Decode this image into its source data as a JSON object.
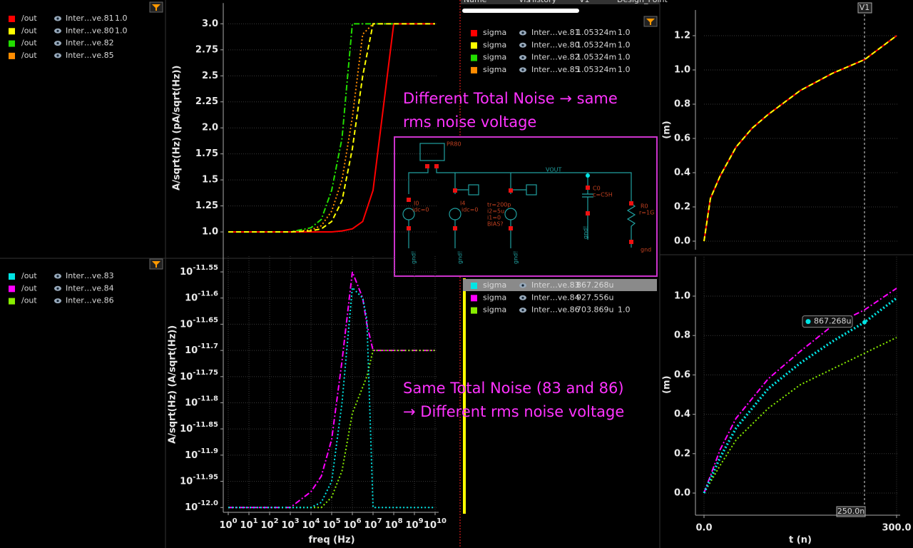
{
  "left_legend": {
    "top": [
      {
        "signal": "/out",
        "name": "Inter…ve.81",
        "extra": "1.0",
        "color": "#ff0000"
      },
      {
        "signal": "/out",
        "name": "Inter…ve.80",
        "extra": "1.0",
        "color": "#ffff00"
      },
      {
        "signal": "/out",
        "name": "Inter…ve.82",
        "color": "#22dd00"
      },
      {
        "signal": "/out",
        "name": "Inter…ve.85",
        "color": "#ff8c00"
      }
    ],
    "bottom": [
      {
        "signal": "/out",
        "name": "Inter…ve.83",
        "color": "#00e5e5"
      },
      {
        "signal": "/out",
        "name": "Inter…ve.84",
        "color": "#ff00ff"
      },
      {
        "signal": "/out",
        "name": "Inter…ve.86",
        "color": "#88ee00"
      }
    ]
  },
  "middle": {
    "header": [
      "Name",
      "Vis",
      "History",
      "V1",
      "Design_Point"
    ],
    "top_rows": [
      {
        "label": "sigma",
        "name": "Inter…ve.81",
        "value": "1.05324m",
        "extra": "1.0",
        "color": "#ff0000"
      },
      {
        "label": "sigma",
        "name": "Inter…ve.80",
        "value": "1.05324m",
        "extra": "1.0",
        "color": "#ffff00"
      },
      {
        "label": "sigma",
        "name": "Inter…ve.82",
        "value": "1.05324m",
        "extra": "1.0",
        "color": "#22dd00"
      },
      {
        "label": "sigma",
        "name": "Inter…ve.85",
        "value": "1.05324m",
        "extra": "1.0",
        "color": "#ff8c00"
      }
    ],
    "bottom_rows": [
      {
        "label": "sigma",
        "name": "Inter…ve.83",
        "value": "867.268u",
        "color": "#00e5e5"
      },
      {
        "label": "sigma",
        "name": "Inter…ve.84",
        "value": "927.556u",
        "color": "#ff00ff"
      },
      {
        "label": "sigma",
        "name": "Inter…ve.86",
        "value": "703.869u",
        "extra": "1.0",
        "color": "#88ee00"
      }
    ],
    "note_top": [
      "Different Total Noise → same",
      "rms noise voltage"
    ],
    "note_bottom": [
      "Same Total Noise (83 and 86)",
      "→ Different rms noise voltage"
    ]
  },
  "schematic": {
    "labels": [
      "PR80",
      "VOUT",
      "I0",
      "idc=0",
      "I4",
      "idc=0",
      "tr=200p",
      "i2=5u",
      "i1=0",
      "BIAS?",
      "C0",
      "c=C5H",
      "R0",
      "r=1G",
      "gnd!",
      "gnd!",
      "gnd!",
      "gnd!",
      "gnd"
    ]
  },
  "chart_data": [
    {
      "type": "line",
      "y_label": "A/sqrt(Hz) (pA/sqrt(Hz))",
      "x_log": true,
      "x": [
        1,
        10,
        100,
        1000,
        10000,
        31623,
        100000,
        316228,
        1000000,
        3162278,
        10000000,
        31622777,
        100000000,
        1000000000,
        10000000000
      ],
      "xlim": [
        1,
        10000000000
      ],
      "ylim": [
        0.8,
        3.2
      ],
      "yticks": [
        {
          "value": 1,
          "label": "1.0"
        },
        1.25,
        1.5,
        1.75,
        {
          "value": 2,
          "label": "2.0"
        },
        2.25,
        2.5,
        2.75,
        {
          "value": 3,
          "label": "3.0"
        }
      ],
      "grid": true,
      "series": [
        {
          "color": "#ff8c00",
          "style": "dot",
          "values": [
            1,
            1,
            1,
            1,
            1.02,
            1.06,
            1.2,
            1.5,
            2.1,
            2.9,
            3,
            3,
            3,
            3,
            3
          ]
        },
        {
          "color": "#22dd00",
          "style": "dashdot",
          "values": [
            1,
            1,
            1,
            1,
            1.04,
            1.12,
            1.4,
            1.9,
            3,
            3,
            3,
            3,
            3,
            3,
            3
          ]
        },
        {
          "color": "#ff0000",
          "style": "solid",
          "values": [
            1,
            1,
            1,
            1,
            1,
            1,
            1,
            1.01,
            1.03,
            1.1,
            1.4,
            2.2,
            3,
            3,
            3
          ]
        },
        {
          "color": "#ffff00",
          "style": "dash",
          "values": [
            1,
            1,
            1,
            1,
            1.01,
            1.03,
            1.1,
            1.3,
            1.8,
            2.5,
            3,
            3,
            3,
            3,
            3
          ]
        }
      ]
    },
    {
      "type": "line",
      "y_label": "A/sqrt(Hz) (A/sqrt(Hz))",
      "x_label": "freq (Hz)",
      "x_log": true,
      "y_log": true,
      "x": [
        1,
        10,
        100,
        1000,
        10000,
        31623,
        100000,
        316228,
        1000000,
        3162278,
        5000000,
        10000000,
        100000000,
        1000000000,
        10000000000
      ],
      "xlim": [
        1,
        10000000000
      ],
      "xticks": [
        {
          "value": 1,
          "label": "100"
        },
        {
          "value": 10,
          "label": "101"
        },
        {
          "value": 100,
          "label": "102"
        },
        {
          "value": 1000,
          "label": "103"
        },
        {
          "value": 10000,
          "label": "104"
        },
        {
          "value": 100000,
          "label": "105"
        },
        {
          "value": 1000000,
          "label": "106"
        },
        {
          "value": 10000000,
          "label": "107"
        },
        {
          "value": 100000000,
          "label": "108"
        },
        {
          "value": 1000000000,
          "label": "109"
        },
        {
          "value": 10000000000,
          "label": "1010"
        }
      ],
      "ylim": [
        9.772e-13,
        3.02e-12
      ],
      "yticks": [
        {
          "value": 2.818e-12,
          "label": "10-11.55"
        },
        {
          "value": 2.512e-12,
          "label": "10-11.6"
        },
        {
          "value": 2.239e-12,
          "label": "10-11.65"
        },
        {
          "value": 1.995e-12,
          "label": "10-11.7"
        },
        {
          "value": 1.778e-12,
          "label": "10-11.75"
        },
        {
          "value": 1.585e-12,
          "label": "10-11.8"
        },
        {
          "value": 1.413e-12,
          "label": "10-11.85"
        },
        {
          "value": 1.259e-12,
          "label": "10-11.9"
        },
        {
          "value": 1.122e-12,
          "label": "10-11.95"
        },
        {
          "value": 1e-12,
          "label": "10-12.0"
        }
      ],
      "grid": true,
      "series": [
        {
          "color": "#ff00ff",
          "style": "dashdot",
          "values": [
            1e-12,
            1e-12,
            1e-12,
            1e-12,
            1.072e-12,
            1.148e-12,
            1.349e-12,
            1.905e-12,
            2.818e-12,
            2.512e-12,
            2.239e-12,
            1.995e-12,
            1.995e-12,
            1.995e-12,
            1.995e-12
          ]
        },
        {
          "color": "#88ee00",
          "style": "dot",
          "values": [
            1e-12,
            1e-12,
            1e-12,
            1e-12,
            1e-12,
            1e-12,
            1.047e-12,
            1.175e-12,
            1.514e-12,
            1.698e-12,
            1.778e-12,
            1.995e-12,
            1.995e-12,
            1.995e-12,
            1.995e-12
          ]
        },
        {
          "color": "#00e5e5",
          "style": "dot",
          "values": [
            1e-12,
            1e-12,
            1e-12,
            1e-12,
            1e-12,
            1.023e-12,
            1.122e-12,
            1.585e-12,
            2.63e-12,
            2.512e-12,
            2.291e-12,
            1e-12,
            1e-12,
            1e-12,
            1e-12
          ]
        }
      ]
    },
    {
      "type": "line",
      "y_label": "(m)",
      "x": [
        0,
        10,
        25,
        50,
        75,
        100,
        150,
        200,
        250,
        300
      ],
      "xlim": [
        0,
        300
      ],
      "ylim": [
        -0.05,
        1.35
      ],
      "yticks": [
        {
          "value": 0,
          "label": "0.0"
        },
        0.2,
        0.4,
        0.6,
        0.8,
        {
          "value": 1,
          "label": "1.0"
        },
        1.2
      ],
      "grid": true,
      "series": [
        {
          "color": "#22dd00",
          "style": "dashdot",
          "values": [
            0,
            0.25,
            0.38,
            0.55,
            0.66,
            0.74,
            0.88,
            0.98,
            1.06,
            1.2
          ]
        },
        {
          "color": "#ff8c00",
          "style": "dot",
          "values": [
            0,
            0.25,
            0.38,
            0.55,
            0.66,
            0.74,
            0.88,
            0.98,
            1.06,
            1.2
          ]
        },
        {
          "color": "#ff0000",
          "style": "solid",
          "values": [
            0,
            0.25,
            0.38,
            0.55,
            0.66,
            0.74,
            0.88,
            0.98,
            1.06,
            1.2
          ]
        },
        {
          "color": "#ffff00",
          "style": "dash",
          "values": [
            0,
            0.25,
            0.38,
            0.55,
            0.66,
            0.74,
            0.88,
            0.98,
            1.06,
            1.2
          ]
        }
      ],
      "cursor": {
        "name": "V1",
        "x": 250,
        "label": "250.0n"
      }
    },
    {
      "type": "line",
      "y_label": "(m)",
      "x_label": "t (n)",
      "x": [
        0,
        25,
        50,
        100,
        150,
        200,
        250,
        300
      ],
      "xlim": [
        0,
        300
      ],
      "xticks": [
        {
          "value": 0,
          "label": "0.0"
        },
        {
          "value": 300,
          "label": "300.0"
        }
      ],
      "ylim": [
        -0.1,
        1.2
      ],
      "yticks": [
        {
          "value": 0,
          "label": "0.0"
        },
        0.2,
        0.4,
        0.6,
        0.8,
        {
          "value": 1,
          "label": "1.0"
        }
      ],
      "grid": true,
      "series": [
        {
          "color": "#88ee00",
          "style": "dot",
          "values": [
            0,
            0.14,
            0.27,
            0.43,
            0.55,
            0.63,
            0.71,
            0.79
          ]
        },
        {
          "color": "#ff00ff",
          "style": "dashdot",
          "values": [
            0,
            0.22,
            0.38,
            0.58,
            0.72,
            0.85,
            0.93,
            1.04
          ]
        },
        {
          "color": "#00e5e5",
          "style": "dot",
          "width": 3.5,
          "values": [
            0,
            0.18,
            0.33,
            0.53,
            0.66,
            0.77,
            0.867268,
            0.99
          ]
        }
      ],
      "marker": {
        "x": 250,
        "value": 0.867268,
        "label": "867.268u"
      }
    }
  ]
}
